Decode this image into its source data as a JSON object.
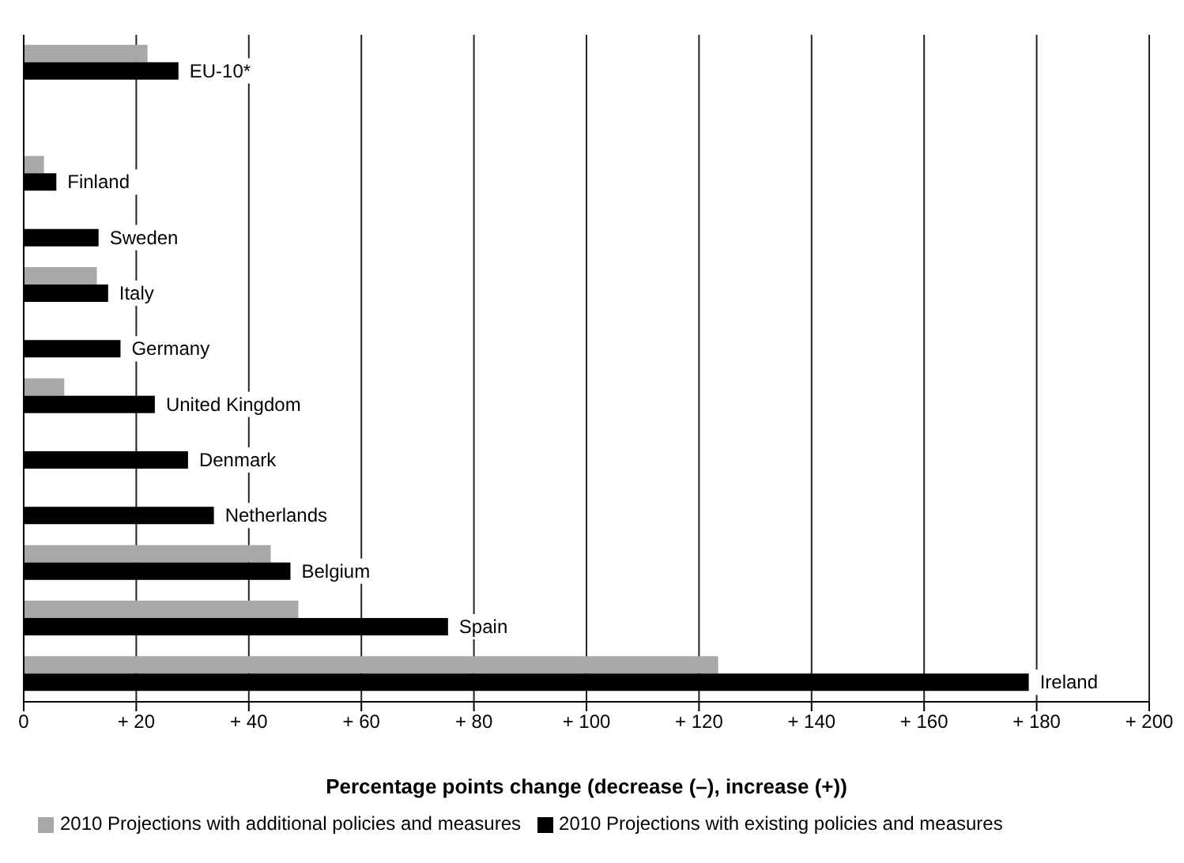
{
  "chart_data": {
    "type": "bar",
    "orientation": "horizontal",
    "xlabel": "Percentage points change (decrease (–), increase (+))",
    "categories": [
      "EU-10*",
      null,
      "Finland",
      "Sweden",
      "Italy",
      "Germany",
      "United Kingdom",
      "Denmark",
      "Netherlands",
      "Belgium",
      "Spain",
      "Ireland"
    ],
    "series": [
      {
        "name": "2010 Projections with additional policies and measures",
        "color": "#a8a8a8",
        "values": [
          22,
          null,
          3.6,
          null,
          13,
          null,
          7.2,
          null,
          null,
          43.9,
          48.8,
          123.4
        ]
      },
      {
        "name": "2010 Projections with existing policies and measures",
        "color": "#000000",
        "values": [
          27.5,
          null,
          5.8,
          13.3,
          15,
          17.2,
          23.3,
          29.2,
          33.8,
          47.4,
          75.4,
          178.6
        ]
      }
    ],
    "xlim": [
      0,
      200
    ],
    "xticks": [
      0,
      {
        "value": 20,
        "label": "+ 20"
      },
      {
        "value": 40,
        "label": "+ 40"
      },
      {
        "value": 60,
        "label": "+ 60"
      },
      {
        "value": 80,
        "label": "+ 80"
      },
      {
        "value": 100,
        "label": "+ 100"
      },
      {
        "value": 120,
        "label": "+ 120"
      },
      {
        "value": 140,
        "label": "+ 140"
      },
      {
        "value": 160,
        "label": "+ 160"
      },
      {
        "value": 180,
        "label": "+ 180"
      },
      {
        "value": 200,
        "label": "+ 200"
      }
    ],
    "grid": "x",
    "legend": "bottom"
  }
}
